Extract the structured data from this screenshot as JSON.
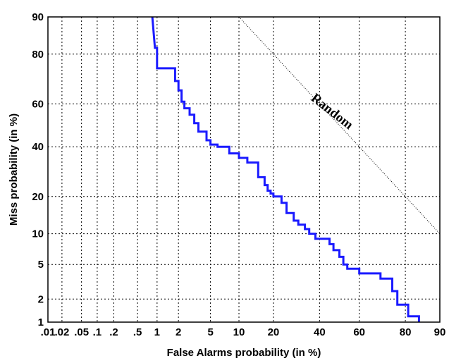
{
  "chart_data": {
    "type": "line",
    "xlabel": "False Alarms probability (in %)",
    "ylabel": "Miss probability (in %)",
    "x_scale": "normal-deviate",
    "y_scale": "normal-deviate",
    "xlim": [
      0.01,
      90
    ],
    "ylim": [
      1,
      90
    ],
    "grid": true,
    "x_ticks": [
      {
        "value": 0.01,
        "label": ".01"
      },
      {
        "value": 0.02,
        "label": ".02"
      },
      {
        "value": 0.05,
        "label": ".05"
      },
      {
        "value": 0.1,
        "label": ".1"
      },
      {
        "value": 0.2,
        "label": ".2"
      },
      {
        "value": 0.5,
        "label": ".5"
      },
      {
        "value": 1,
        "label": "1"
      },
      {
        "value": 2,
        "label": "2"
      },
      {
        "value": 5,
        "label": "5"
      },
      {
        "value": 10,
        "label": "10"
      },
      {
        "value": 20,
        "label": "20"
      },
      {
        "value": 40,
        "label": "40"
      },
      {
        "value": 60,
        "label": "60"
      },
      {
        "value": 80,
        "label": "80"
      },
      {
        "value": 90,
        "label": "90"
      }
    ],
    "y_ticks": [
      {
        "value": 1,
        "label": "1"
      },
      {
        "value": 2,
        "label": "2"
      },
      {
        "value": 5,
        "label": "5"
      },
      {
        "value": 10,
        "label": "10"
      },
      {
        "value": 20,
        "label": "20"
      },
      {
        "value": 40,
        "label": "40"
      },
      {
        "value": 60,
        "label": "60"
      },
      {
        "value": 80,
        "label": "80"
      },
      {
        "value": 90,
        "label": "90"
      }
    ],
    "annotations": [
      {
        "text": "Random",
        "x": 45,
        "y": 55
      }
    ],
    "colors": {
      "curve": "#1a1aff",
      "reference": "#000000",
      "grid": "#000000"
    },
    "series": [
      {
        "color": "#1a1aff",
        "x": [
          0.85,
          0.93,
          1.0,
          1.0,
          1.8,
          1.8,
          2.0,
          2.0,
          2.2,
          2.2,
          2.4,
          2.4,
          2.8,
          2.8,
          3.2,
          3.2,
          3.6,
          3.6,
          4.5,
          4.5,
          5.0,
          5.0,
          6.0,
          6.0,
          8.0,
          8.0,
          10.0,
          10.0,
          12.0,
          12.0,
          15.0,
          15.0,
          17.0,
          17.0,
          18.0,
          18.0,
          19.0,
          19.0,
          20.0,
          20.0,
          23.0,
          23.0,
          25.0,
          25.0,
          28.0,
          28.0,
          30.0,
          30.0,
          33.0,
          33.0,
          35.0,
          35.0,
          38.0,
          38.0,
          45.0,
          45.0,
          47.0,
          47.0,
          50.0,
          50.0,
          52.0,
          52.0,
          54.0,
          54.0,
          60.0,
          60.0,
          70.0,
          70.0,
          75.0,
          75.0,
          77.0,
          77.0,
          81.0,
          81.0,
          84.5,
          84.5
        ],
        "y": [
          90.0,
          82.0,
          82.0,
          75.0,
          75.0,
          70.0,
          70.0,
          66.0,
          66.0,
          61.0,
          61.0,
          58.0,
          58.0,
          55.0,
          55.0,
          51.0,
          51.0,
          47.0,
          47.0,
          43.0,
          43.0,
          41.0,
          41.0,
          40.0,
          40.0,
          37.0,
          37.0,
          35.0,
          35.0,
          33.0,
          33.0,
          27.0,
          27.0,
          24.0,
          24.0,
          22.0,
          22.0,
          21.0,
          21.0,
          20.0,
          20.0,
          18.0,
          18.0,
          15.0,
          15.0,
          13.0,
          13.0,
          12.0,
          12.0,
          11.0,
          11.0,
          10.0,
          10.0,
          9.0,
          9.0,
          8.0,
          8.0,
          7.0,
          7.0,
          6.0,
          6.0,
          5.0,
          5.0,
          4.5,
          4.5,
          4.0,
          4.0,
          3.5,
          3.5,
          2.5,
          2.5,
          1.7,
          1.7,
          1.2,
          1.2,
          1.0
        ]
      }
    ]
  }
}
